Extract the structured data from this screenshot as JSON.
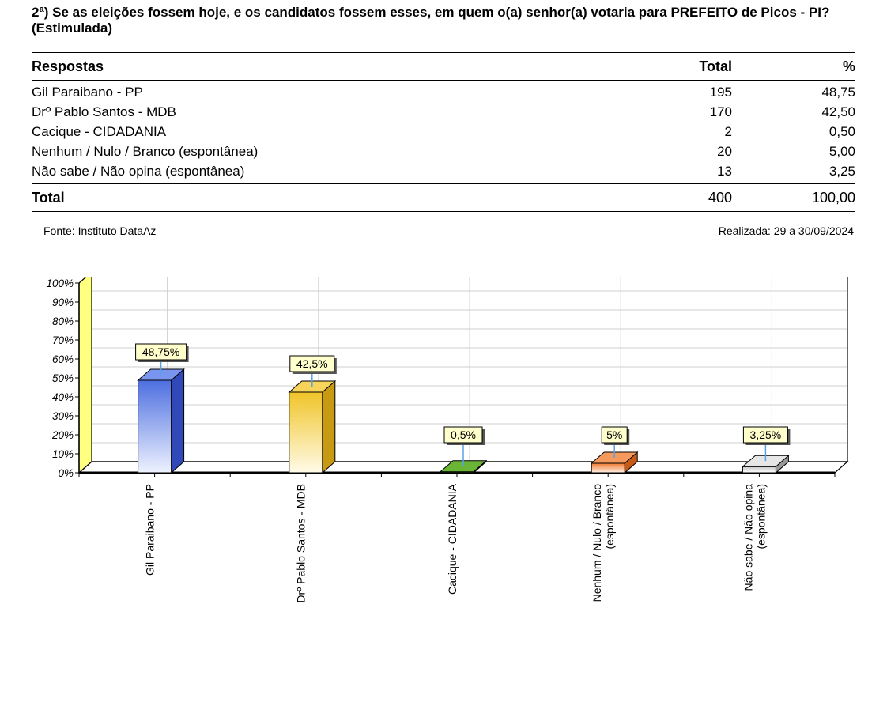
{
  "question": "2ª) Se as eleições fossem hoje, e os candidatos fossem esses, em quem o(a) senhor(a) votaria para PREFEITO de Picos - PI? (Estimulada)",
  "table": {
    "headers": [
      "Respostas",
      "Total",
      "%"
    ],
    "rows": [
      {
        "label": "Gil Paraibano - PP",
        "total": "195",
        "pct": "48,75"
      },
      {
        "label": "Drº Pablo Santos - MDB",
        "total": "170",
        "pct": "42,50"
      },
      {
        "label": "Cacique - CIDADANIA",
        "total": "2",
        "pct": "0,50"
      },
      {
        "label": "Nenhum / Nulo / Branco (espontânea)",
        "total": "20",
        "pct": "5,00"
      },
      {
        "label": "Não sabe / Não opina (espontânea)",
        "total": "13",
        "pct": "3,25"
      }
    ],
    "total": {
      "label": "Total",
      "total": "400",
      "pct": "100,00"
    }
  },
  "source": "Fonte: Instituto DataAz",
  "date": "Realizada:  29 a 30/09/2024",
  "chart_data": {
    "type": "bar",
    "categories": [
      [
        "Gil Paraibano - PP"
      ],
      [
        "Drº Pablo Santos - MDB"
      ],
      [
        "Cacique - CIDADANIA"
      ],
      [
        "Nenhum / Nulo / Branco",
        "(espontânea)"
      ],
      [
        "Não sabe / Não opina",
        "(espontânea)"
      ]
    ],
    "values": [
      48.75,
      42.5,
      0.5,
      5,
      3.25
    ],
    "value_labels": [
      "48,75%",
      "42,5%",
      "0,5%",
      "5%",
      "3,25%"
    ],
    "y_ticks": [
      "0%",
      "10%",
      "20%",
      "30%",
      "40%",
      "50%",
      "60%",
      "70%",
      "80%",
      "90%",
      "100%"
    ],
    "ylim": [
      0,
      100
    ],
    "colors": [
      {
        "front": "#4d6fe0",
        "light": "#eef2ff",
        "side": "#3148b8",
        "top": "#7a95f0"
      },
      {
        "front": "#f0c428",
        "light": "#fffbe8",
        "side": "#c79a12",
        "top": "#f6d55a"
      },
      {
        "front": "#5a9e2c",
        "light": "#a8d86a",
        "side": "#3e7a18",
        "top": "#6ab535"
      },
      {
        "front": "#f07a30",
        "light": "#fff0e6",
        "side": "#c85a18",
        "top": "#f59a5c"
      },
      {
        "front": "#c8c8c8",
        "light": "#ffffff",
        "side": "#9a9a9a",
        "top": "#e6e6e6"
      }
    ],
    "wall_color": "#ffff80",
    "label_bg": "#ffffcc",
    "leader_color": "#5aa0e8",
    "grid": true
  }
}
